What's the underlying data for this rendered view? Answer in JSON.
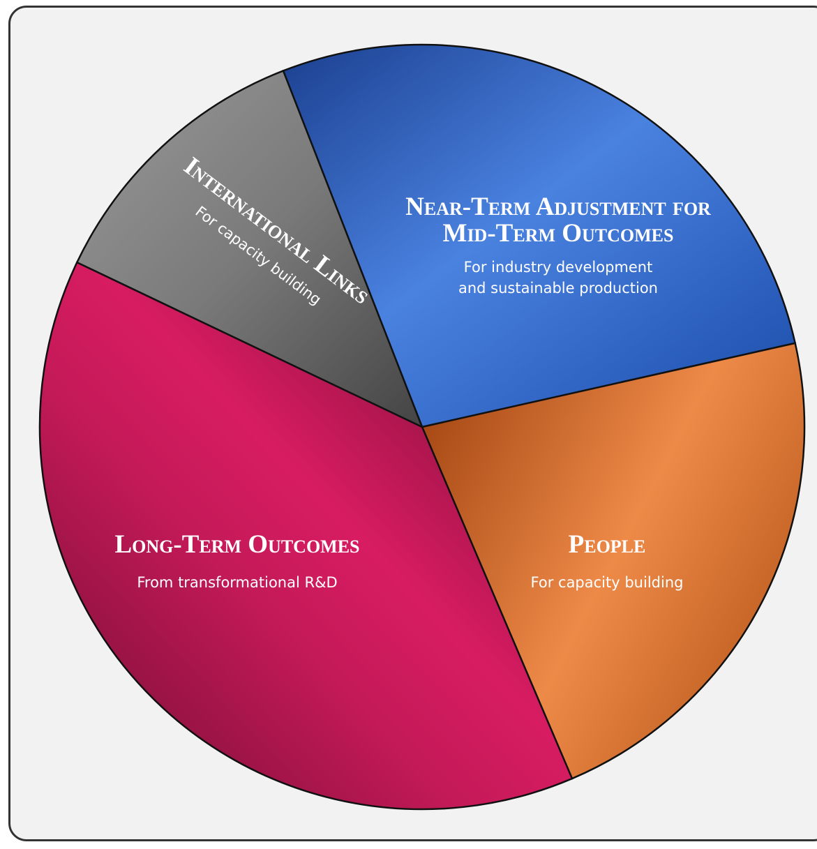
{
  "chart_data": {
    "type": "pie",
    "title": "",
    "slices": [
      {
        "label": "Near-Term Adjustment for Mid-Term Outcomes",
        "title_lines": [
          "Near-Term Adjustment for",
          "Mid-Term Outcomes"
        ],
        "subtitle_lines": [
          "For industry development",
          "and sustainable production"
        ],
        "value": 27.4,
        "color": "#3a6fd0"
      },
      {
        "label": "People",
        "title_lines": [
          "People"
        ],
        "subtitle_lines": [
          "For capacity building"
        ],
        "value": 22.1,
        "color": "#d9742e"
      },
      {
        "label": "Long-Term Outcomes",
        "title_lines": [
          "Long-Term Outcomes"
        ],
        "subtitle_lines": [
          "From transformational R&D"
        ],
        "value": 38.5,
        "color": "#b8174f"
      },
      {
        "label": "International Links",
        "title_lines": [
          "International Links"
        ],
        "subtitle_lines": [
          "For capacity building"
        ],
        "value": 12.0,
        "color": "#7a7a7a"
      }
    ],
    "start_angle_deg": -21.3,
    "direction": "clockwise",
    "legend": "none"
  }
}
